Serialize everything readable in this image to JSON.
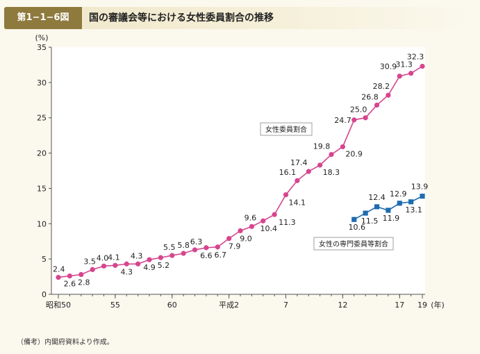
{
  "header": {
    "figure_label": "第1−1−6図",
    "title": "国の審議会等における女性委員割合の推移"
  },
  "note": "（備考）内閣府資料より作成。",
  "chart_data": {
    "type": "line",
    "title": "国の審議会等における女性委員割合の推移",
    "ylabel": "(%)",
    "xlabel": "(年)",
    "ylim": [
      0,
      35
    ],
    "yticks": [
      0,
      5,
      10,
      15,
      20,
      25,
      30,
      35
    ],
    "x_range": [
      0,
      33
    ],
    "x_ticks": [
      {
        "x": 0,
        "label": "昭和50"
      },
      {
        "x": 5,
        "label": "55"
      },
      {
        "x": 10,
        "label": "60"
      },
      {
        "x": 15,
        "label": "平成2"
      },
      {
        "x": 20,
        "label": "7"
      },
      {
        "x": 25,
        "label": "12"
      },
      {
        "x": 30,
        "label": "17"
      },
      {
        "x": 32,
        "label": "19"
      }
    ],
    "grid": false,
    "colors": {
      "series1": "#d6458e",
      "series2": "#1e6cb0"
    },
    "series": [
      {
        "name": "女性委員割合",
        "x": [
          0,
          1,
          2,
          3,
          4,
          5,
          6,
          7,
          8,
          9,
          10,
          11,
          12,
          13,
          14,
          15,
          16,
          17,
          18,
          19,
          20,
          21,
          22,
          23,
          24,
          25,
          26,
          27,
          28,
          29,
          30,
          31,
          32
        ],
        "values": [
          2.4,
          2.6,
          2.8,
          3.5,
          4.0,
          4.1,
          4.3,
          4.3,
          4.9,
          5.2,
          5.5,
          5.8,
          6.3,
          6.6,
          6.7,
          7.9,
          9.0,
          9.6,
          10.4,
          11.3,
          14.1,
          16.1,
          17.4,
          18.3,
          19.8,
          20.9,
          24.7,
          25.0,
          26.8,
          28.2,
          30.9,
          31.3,
          32.3
        ],
        "labels": [
          "2.4",
          "2.6",
          "2.8",
          "3.5",
          "4.0",
          "4.1",
          "4.3",
          "4.3",
          "4.9",
          "5.2",
          "5.5",
          "5.8",
          "6.3",
          "6.6",
          "6.7",
          "7.9",
          "9.0",
          "9.6",
          "10.4",
          "11.3",
          "14.1",
          "16.1",
          "17.4",
          "18.3",
          "19.8",
          "20.9",
          "24.7",
          "25.0",
          "26.8",
          "28.2",
          "30.9",
          "31.3",
          "32.3"
        ]
      },
      {
        "name": "女性の専門委員等割合",
        "x": [
          26,
          27,
          28,
          29,
          30,
          31,
          32
        ],
        "values": [
          10.6,
          11.5,
          12.4,
          11.9,
          12.9,
          13.1,
          13.9
        ],
        "labels": [
          "10.6",
          "11.5",
          "12.4",
          "11.9",
          "12.9",
          "13.1",
          "13.9"
        ]
      }
    ]
  }
}
